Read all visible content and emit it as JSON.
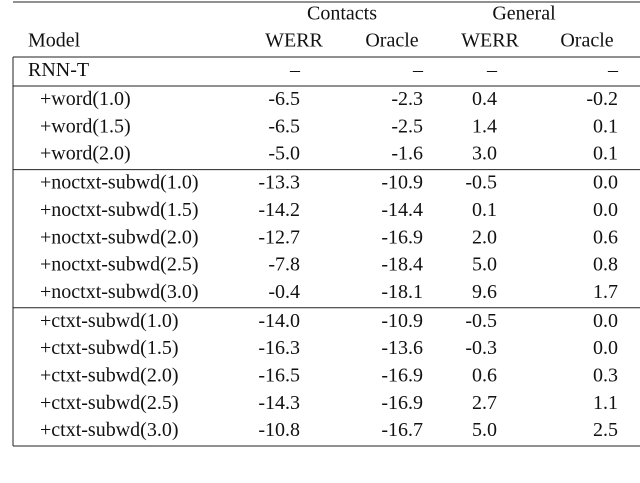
{
  "header": {
    "groups": [
      "Contacts",
      "General"
    ],
    "columns": [
      "Model",
      "WERR",
      "Oracle",
      "WERR",
      "Oracle"
    ]
  },
  "table": {
    "sections": [
      {
        "rows": [
          [
            "RNN-T",
            "–",
            "–",
            "–",
            "–"
          ]
        ]
      },
      {
        "rows": [
          [
            "+word(1.0)",
            "-6.5",
            "-2.3",
            "0.4",
            "-0.2"
          ],
          [
            "+word(1.5)",
            "-6.5",
            "-2.5",
            "1.4",
            "0.1"
          ],
          [
            "+word(2.0)",
            "-5.0",
            "-1.6",
            "3.0",
            "0.1"
          ]
        ]
      },
      {
        "rows": [
          [
            "+noctxt-subwd(1.0)",
            "-13.3",
            "-10.9",
            "-0.5",
            "0.0"
          ],
          [
            "+noctxt-subwd(1.5)",
            "-14.2",
            "-14.4",
            "0.1",
            "0.0"
          ],
          [
            "+noctxt-subwd(2.0)",
            "-12.7",
            "-16.9",
            "2.0",
            "0.6"
          ],
          [
            "+noctxt-subwd(2.5)",
            "-7.8",
            "-18.4",
            "5.0",
            "0.8"
          ],
          [
            "+noctxt-subwd(3.0)",
            "-0.4",
            "-18.1",
            "9.6",
            "1.7"
          ]
        ]
      },
      {
        "rows": [
          [
            "+ctxt-subwd(1.0)",
            "-14.0",
            "-10.9",
            "-0.5",
            "0.0"
          ],
          [
            "+ctxt-subwd(1.5)",
            "-16.3",
            "-13.6",
            "-0.3",
            "0.0"
          ],
          [
            "+ctxt-subwd(2.0)",
            "-16.5",
            "-16.9",
            "0.6",
            "0.3"
          ],
          [
            "+ctxt-subwd(2.5)",
            "-14.3",
            "-16.9",
            "2.7",
            "1.1"
          ],
          [
            "+ctxt-subwd(3.0)",
            "-10.8",
            "-16.7",
            "5.0",
            "2.5"
          ]
        ]
      }
    ]
  }
}
